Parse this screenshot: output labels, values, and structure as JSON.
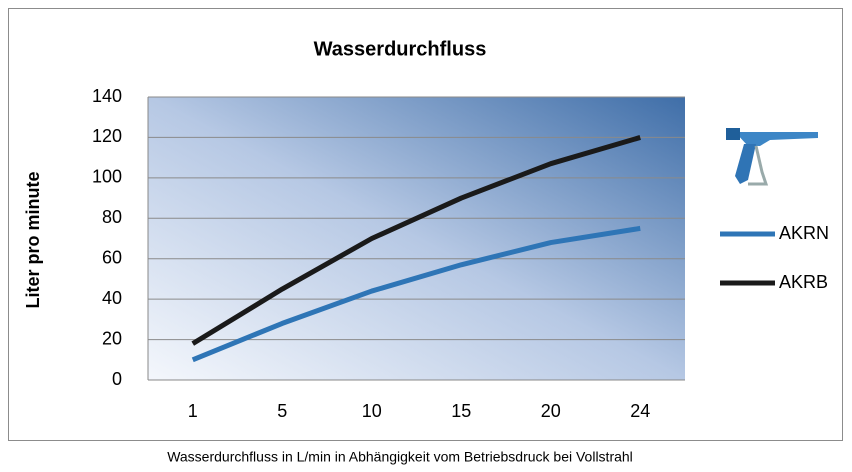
{
  "chart_data": {
    "type": "line",
    "title": "Wasserdurchfluss",
    "ylabel": "Liter pro minute",
    "caption": "Wasserdurchfluss in L/min in Abhängigkeit vom Betriebsdruck bei Vollstrahl",
    "categories": [
      "1",
      "5",
      "10",
      "15",
      "20",
      "24"
    ],
    "series": [
      {
        "name": "AKRN",
        "color": "#2e75b6",
        "values": [
          10,
          28,
          44,
          57,
          68,
          75
        ]
      },
      {
        "name": "AKRB",
        "color": "#1a1a1a",
        "values": [
          18,
          45,
          70,
          90,
          107,
          120
        ]
      }
    ],
    "ylim": [
      0,
      140
    ],
    "yticks": [
      0,
      20,
      40,
      60,
      80,
      100,
      120,
      140
    ],
    "grid": true,
    "legend": "right"
  }
}
